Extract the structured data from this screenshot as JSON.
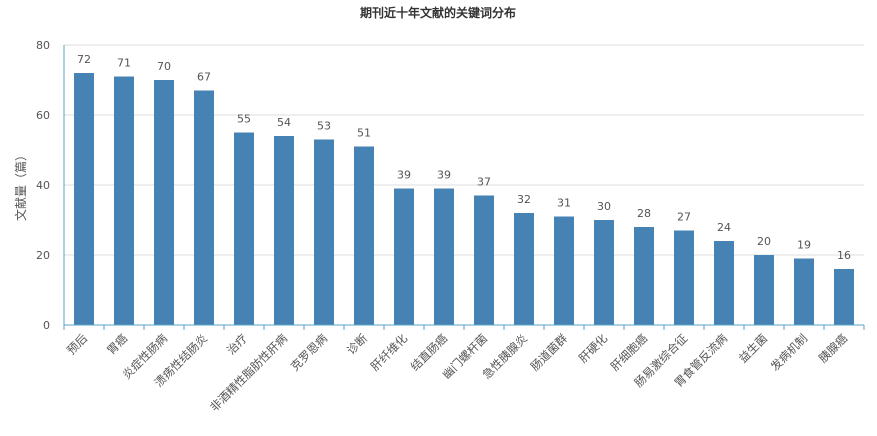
{
  "chart_data": {
    "type": "bar",
    "title": "期刊近十年文献的关键词分布",
    "xlabel": "",
    "ylabel": "文献量（篇）",
    "ylim": [
      0,
      80
    ],
    "yticks": [
      0,
      20,
      40,
      60,
      80
    ],
    "grid": true,
    "bar_color": "#4682b4",
    "categories": [
      "预后",
      "胃癌",
      "炎症性肠病",
      "溃疡性结肠炎",
      "治疗",
      "非酒精性脂肪性肝病",
      "克罗恩病",
      "诊断",
      "肝纤维化",
      "结直肠癌",
      "幽门螺杆菌",
      "急性胰腺炎",
      "肠道菌群",
      "肝硬化",
      "肝细胞癌",
      "肠易激综合征",
      "胃食管反流病",
      "益生菌",
      "发病机制",
      "胰腺癌"
    ],
    "values": [
      72,
      71,
      70,
      67,
      55,
      54,
      53,
      51,
      39,
      39,
      37,
      32,
      31,
      30,
      28,
      27,
      24,
      20,
      19,
      16
    ]
  }
}
